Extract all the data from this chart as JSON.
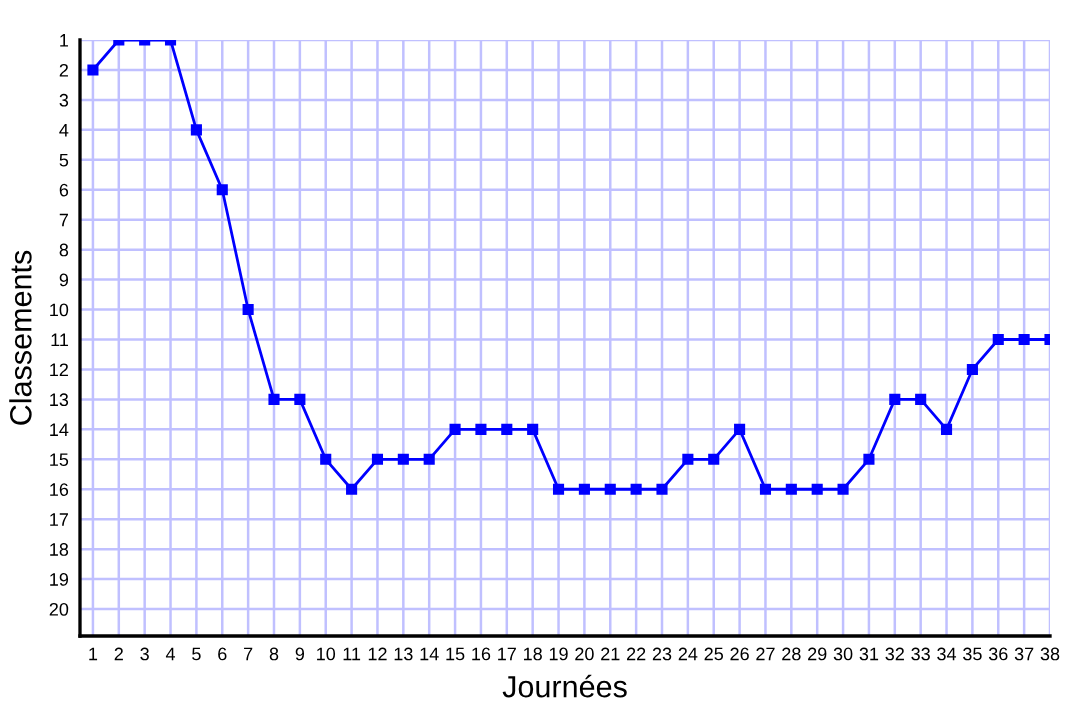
{
  "chart_data": {
    "type": "line",
    "xlabel": "Journées",
    "ylabel": "Classements",
    "x": [
      1,
      2,
      3,
      4,
      5,
      6,
      7,
      8,
      9,
      10,
      11,
      12,
      13,
      14,
      15,
      16,
      17,
      18,
      19,
      20,
      21,
      22,
      23,
      24,
      25,
      26,
      27,
      28,
      29,
      30,
      31,
      32,
      33,
      34,
      35,
      36,
      37,
      38
    ],
    "series": [
      {
        "color": "#0000ff",
        "values": [
          2,
          1,
          1,
          1,
          4,
          6,
          10,
          13,
          13,
          15,
          16,
          15,
          15,
          15,
          14,
          14,
          14,
          14,
          16,
          16,
          16,
          16,
          16,
          15,
          15,
          14,
          16,
          16,
          16,
          16,
          15,
          13,
          13,
          14,
          12,
          11,
          11,
          11
        ]
      }
    ],
    "xlim": [
      0.5,
      38
    ],
    "ylim": [
      20.9,
      1
    ],
    "xticks": [
      1,
      2,
      3,
      4,
      5,
      6,
      7,
      8,
      9,
      10,
      11,
      12,
      13,
      14,
      15,
      16,
      17,
      18,
      19,
      20,
      21,
      22,
      23,
      24,
      25,
      26,
      27,
      28,
      29,
      30,
      31,
      32,
      33,
      34,
      35,
      36,
      37,
      38
    ],
    "yticks": [
      1,
      2,
      3,
      4,
      5,
      6,
      7,
      8,
      9,
      10,
      11,
      12,
      13,
      14,
      15,
      16,
      17,
      18,
      19,
      20
    ],
    "grid": true,
    "marker": "square",
    "line_style": "solid",
    "legend": false
  }
}
